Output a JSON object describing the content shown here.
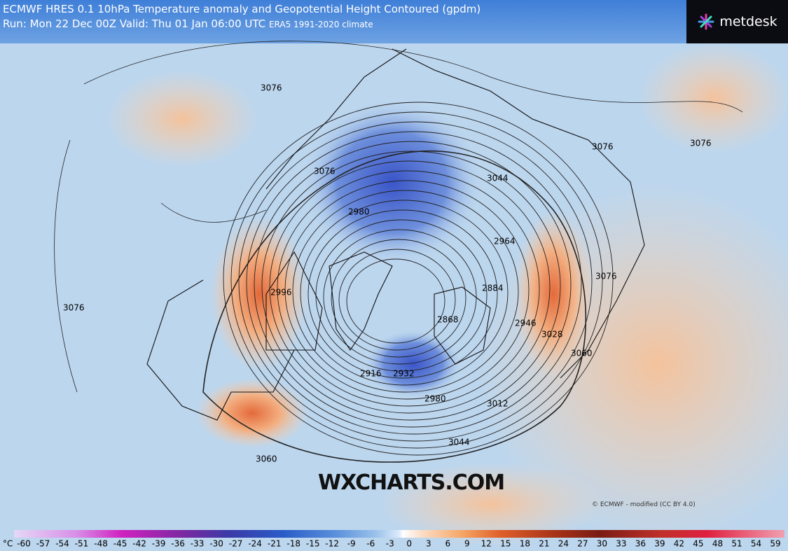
{
  "header": {
    "model": "ECMWF HRES 0.1",
    "title": "10hPa Temperature anomaly and Geopotential Height Contoured (gpdm)",
    "run": "Run: Mon 22 Dec 00Z Valid: Thu 01 Jan 06:00 UTC",
    "climate": "ERA5 1991-2020 climate"
  },
  "logo": "metdesk",
  "watermark": "WXCHARTS.COM",
  "credit": "© ECMWF - modified (CC BY 4.0)",
  "contour_labels": [
    3076,
    3076,
    3076,
    3076,
    3076,
    3076,
    3044,
    2980,
    2964,
    2884,
    2868,
    2946,
    3028,
    3060,
    2916,
    2932,
    2980,
    3012,
    3044,
    3060,
    2996
  ],
  "colorbar": {
    "unit": "°C",
    "ticks": [
      -60,
      -57,
      -54,
      -51,
      -48,
      -45,
      -42,
      -39,
      -36,
      -33,
      -30,
      -27,
      -24,
      -21,
      -18,
      -15,
      -12,
      -9,
      -6,
      -3,
      0,
      3,
      6,
      9,
      12,
      15,
      18,
      21,
      24,
      27,
      30,
      33,
      36,
      39,
      42,
      45,
      48,
      51,
      54,
      59
    ]
  }
}
